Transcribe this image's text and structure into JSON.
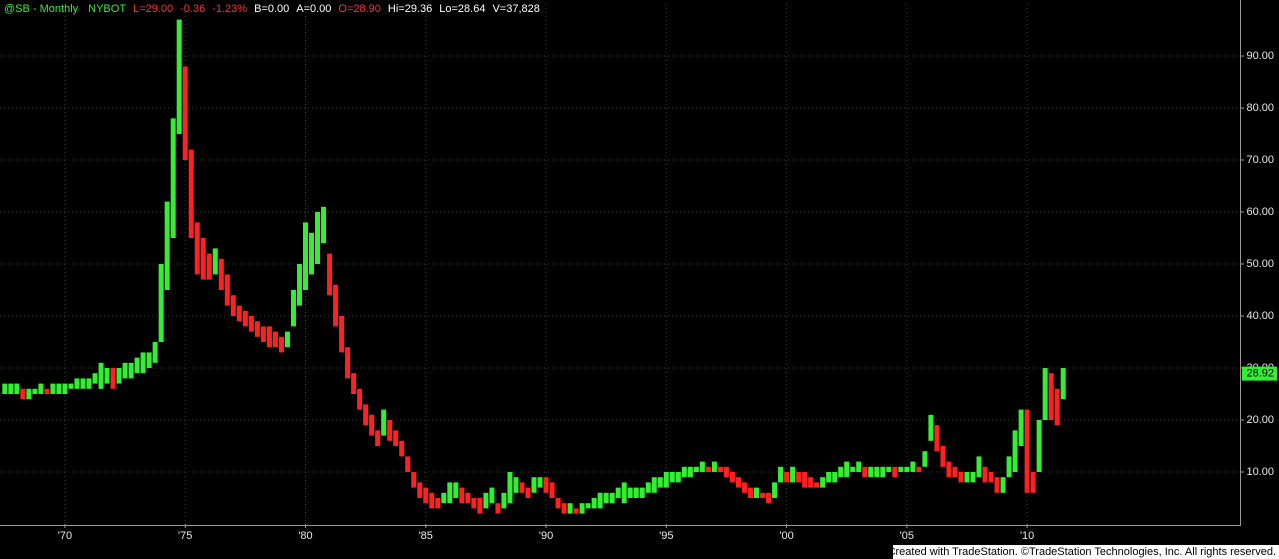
{
  "header": [
    {
      "text": "@SB - Monthly",
      "color": "#33ee33"
    },
    {
      "text": "NYBOT",
      "color": "#33ee33"
    },
    {
      "text": "L=29.00",
      "color": "#ff3030"
    },
    {
      "text": "-0.36",
      "color": "#ff3030"
    },
    {
      "text": "-1.23%",
      "color": "#ff3030"
    },
    {
      "text": "B=0.00",
      "color": "#ffffff"
    },
    {
      "text": "A=0.00",
      "color": "#ffffff"
    },
    {
      "text": "O=28.90",
      "color": "#ff3030"
    },
    {
      "text": "Hi=29.36",
      "color": "#ffffff"
    },
    {
      "text": "Lo=28.64",
      "color": "#ffffff"
    },
    {
      "text": "V=37,828",
      "color": "#ffffff"
    }
  ],
  "footer": "Created with TradeStation. ©TradeStation Technologies, Inc. All rights reserved.",
  "chart_data": {
    "type": "range-bar",
    "up_color": "#33ee33",
    "down_color": "#ff2020",
    "grid": true,
    "xlim": [
      1967.3,
      2018.85
    ],
    "ylim": [
      0,
      100
    ],
    "xticks": [
      {
        "value": 1970,
        "label": "'70"
      },
      {
        "value": 1975,
        "label": "'75"
      },
      {
        "value": 1980,
        "label": "'80"
      },
      {
        "value": 1985,
        "label": "'85"
      },
      {
        "value": 1990,
        "label": "'90"
      },
      {
        "value": 1995,
        "label": "'95"
      },
      {
        "value": 2000,
        "label": "'00"
      },
      {
        "value": 2005,
        "label": "'05"
      },
      {
        "value": 2010,
        "label": "'10"
      }
    ],
    "yticks": [
      {
        "value": 10,
        "label": "10.00"
      },
      {
        "value": 20,
        "label": "20.00"
      },
      {
        "value": 30,
        "label": "30.00"
      },
      {
        "value": 40,
        "label": "40.00"
      },
      {
        "value": 50,
        "label": "50.00"
      },
      {
        "value": 60,
        "label": "60.00"
      },
      {
        "value": 70,
        "label": "70.00"
      },
      {
        "value": 80,
        "label": "80.00"
      },
      {
        "value": 90,
        "label": "90.00"
      }
    ],
    "last_value": 28.92,
    "x": [
      1967.5,
      1967.75,
      1968,
      1968.25,
      1968.5,
      1968.75,
      1969,
      1969.25,
      1969.5,
      1969.75,
      1970,
      1970.25,
      1970.5,
      1970.75,
      1971,
      1971.25,
      1971.5,
      1971.75,
      1972,
      1972.25,
      1972.5,
      1972.75,
      1973,
      1973.25,
      1973.5,
      1973.75,
      1974,
      1974.25,
      1974.5,
      1974.75,
      1975,
      1975.25,
      1975.5,
      1975.75,
      1976,
      1976.25,
      1976.5,
      1976.75,
      1977,
      1977.25,
      1977.5,
      1977.75,
      1978,
      1978.25,
      1978.5,
      1978.75,
      1979,
      1979.25,
      1979.5,
      1979.75,
      1980,
      1980.25,
      1980.5,
      1980.75,
      1981,
      1981.25,
      1981.5,
      1981.75,
      1982,
      1982.25,
      1982.5,
      1982.75,
      1983,
      1983.25,
      1983.5,
      1983.75,
      1984,
      1984.25,
      1984.5,
      1984.75,
      1985,
      1985.25,
      1985.5,
      1985.75,
      1986,
      1986.25,
      1986.5,
      1986.75,
      1987,
      1987.25,
      1987.5,
      1987.75,
      1988,
      1988.25,
      1988.5,
      1988.75,
      1989,
      1989.25,
      1989.5,
      1989.75,
      1990,
      1990.25,
      1990.5,
      1990.75,
      1991,
      1991.25,
      1991.5,
      1991.75,
      1992,
      1992.25,
      1992.5,
      1992.75,
      1993,
      1993.25,
      1993.5,
      1993.75,
      1994,
      1994.25,
      1994.5,
      1994.75,
      1995,
      1995.25,
      1995.5,
      1995.75,
      1996,
      1996.25,
      1996.5,
      1996.75,
      1997,
      1997.25,
      1997.5,
      1997.75,
      1998,
      1998.25,
      1998.5,
      1998.75,
      1999,
      1999.25,
      1999.5,
      1999.75,
      2000,
      2000.25,
      2000.5,
      2000.75,
      2001,
      2001.25,
      2001.5,
      2001.75,
      2002,
      2002.25,
      2002.5,
      2002.75,
      2003,
      2003.25,
      2003.5,
      2003.75,
      2004,
      2004.25,
      2004.5,
      2004.75,
      2005,
      2005.25,
      2005.5,
      2005.75,
      2006,
      2006.25,
      2006.5,
      2006.75,
      2007,
      2007.25,
      2007.5,
      2007.75,
      2008,
      2008.25,
      2008.5,
      2008.75,
      2009,
      2009.25,
      2009.5,
      2009.75,
      2010,
      2010.25,
      2010.5,
      2010.75,
      2011,
      2011.25,
      2011.5
    ],
    "lows": [
      25,
      25,
      25,
      24,
      24,
      25,
      25,
      25,
      25,
      25,
      25,
      26,
      26,
      26,
      26,
      27,
      26,
      27,
      26,
      27,
      28,
      28,
      29,
      29,
      30,
      31,
      35,
      45,
      55,
      75,
      70,
      55,
      48,
      47,
      47,
      48,
      45,
      42,
      40,
      39,
      38,
      37,
      36,
      35,
      34,
      34,
      33,
      34,
      38,
      42,
      45,
      48,
      50,
      54,
      44,
      38,
      33,
      28,
      25,
      22,
      19,
      17,
      15,
      17,
      16,
      15,
      13,
      10,
      7,
      5,
      4,
      3,
      3,
      4,
      4,
      5,
      4,
      4,
      3,
      2,
      3,
      4,
      2,
      3,
      4,
      6,
      6,
      5,
      6,
      7,
      6,
      5,
      3,
      2,
      2,
      2,
      2,
      3,
      3,
      3,
      4,
      4,
      5,
      4,
      5,
      5,
      5,
      6,
      6,
      7,
      7,
      8,
      8,
      9,
      9,
      10,
      10,
      10,
      10,
      10,
      9,
      8,
      7,
      6,
      5,
      5,
      5,
      4,
      5,
      8,
      8,
      8,
      8,
      7,
      7,
      7,
      7,
      8,
      8,
      9,
      9,
      10,
      10,
      9,
      9,
      9,
      9,
      10,
      9,
      10,
      10,
      10,
      10,
      11,
      16,
      14,
      11,
      9,
      9,
      8,
      8,
      8,
      9,
      8,
      8,
      6,
      6,
      9,
      10,
      15,
      6,
      6,
      10,
      20,
      20,
      19,
      24
    ],
    "highs": [
      27,
      27,
      27,
      26,
      26,
      26,
      27,
      26,
      27,
      27,
      27,
      27,
      28,
      28,
      28,
      29,
      31,
      30,
      30,
      30,
      31,
      31,
      32,
      33,
      33,
      35,
      50,
      62,
      78,
      97,
      88,
      72,
      58,
      55,
      52,
      53,
      51,
      48,
      44,
      42,
      41,
      40,
      39,
      38,
      38,
      37,
      36,
      37,
      45,
      50,
      58,
      56,
      60,
      61,
      52,
      46,
      40,
      34,
      29,
      26,
      23,
      21,
      18,
      22,
      20,
      18,
      16,
      13,
      10,
      8,
      7,
      6,
      5,
      6,
      8,
      8,
      7,
      6,
      5,
      5,
      6,
      7,
      4,
      6,
      10,
      9,
      8,
      7,
      9,
      9,
      9,
      8,
      5,
      4,
      4,
      3,
      4,
      4,
      5,
      6,
      6,
      6,
      7,
      8,
      7,
      7,
      7,
      8,
      9,
      9,
      10,
      10,
      10,
      11,
      11,
      11,
      12,
      11,
      12,
      11,
      11,
      10,
      9,
      8,
      7,
      7,
      6,
      6,
      8,
      11,
      10,
      11,
      10,
      10,
      9,
      8,
      9,
      10,
      10,
      11,
      12,
      11,
      12,
      11,
      11,
      11,
      11,
      11,
      11,
      11,
      11,
      12,
      11,
      14,
      21,
      19,
      15,
      12,
      11,
      10,
      10,
      10,
      13,
      11,
      10,
      9,
      9,
      13,
      18,
      22,
      22,
      10,
      20,
      30,
      29,
      26,
      30
    ]
  }
}
